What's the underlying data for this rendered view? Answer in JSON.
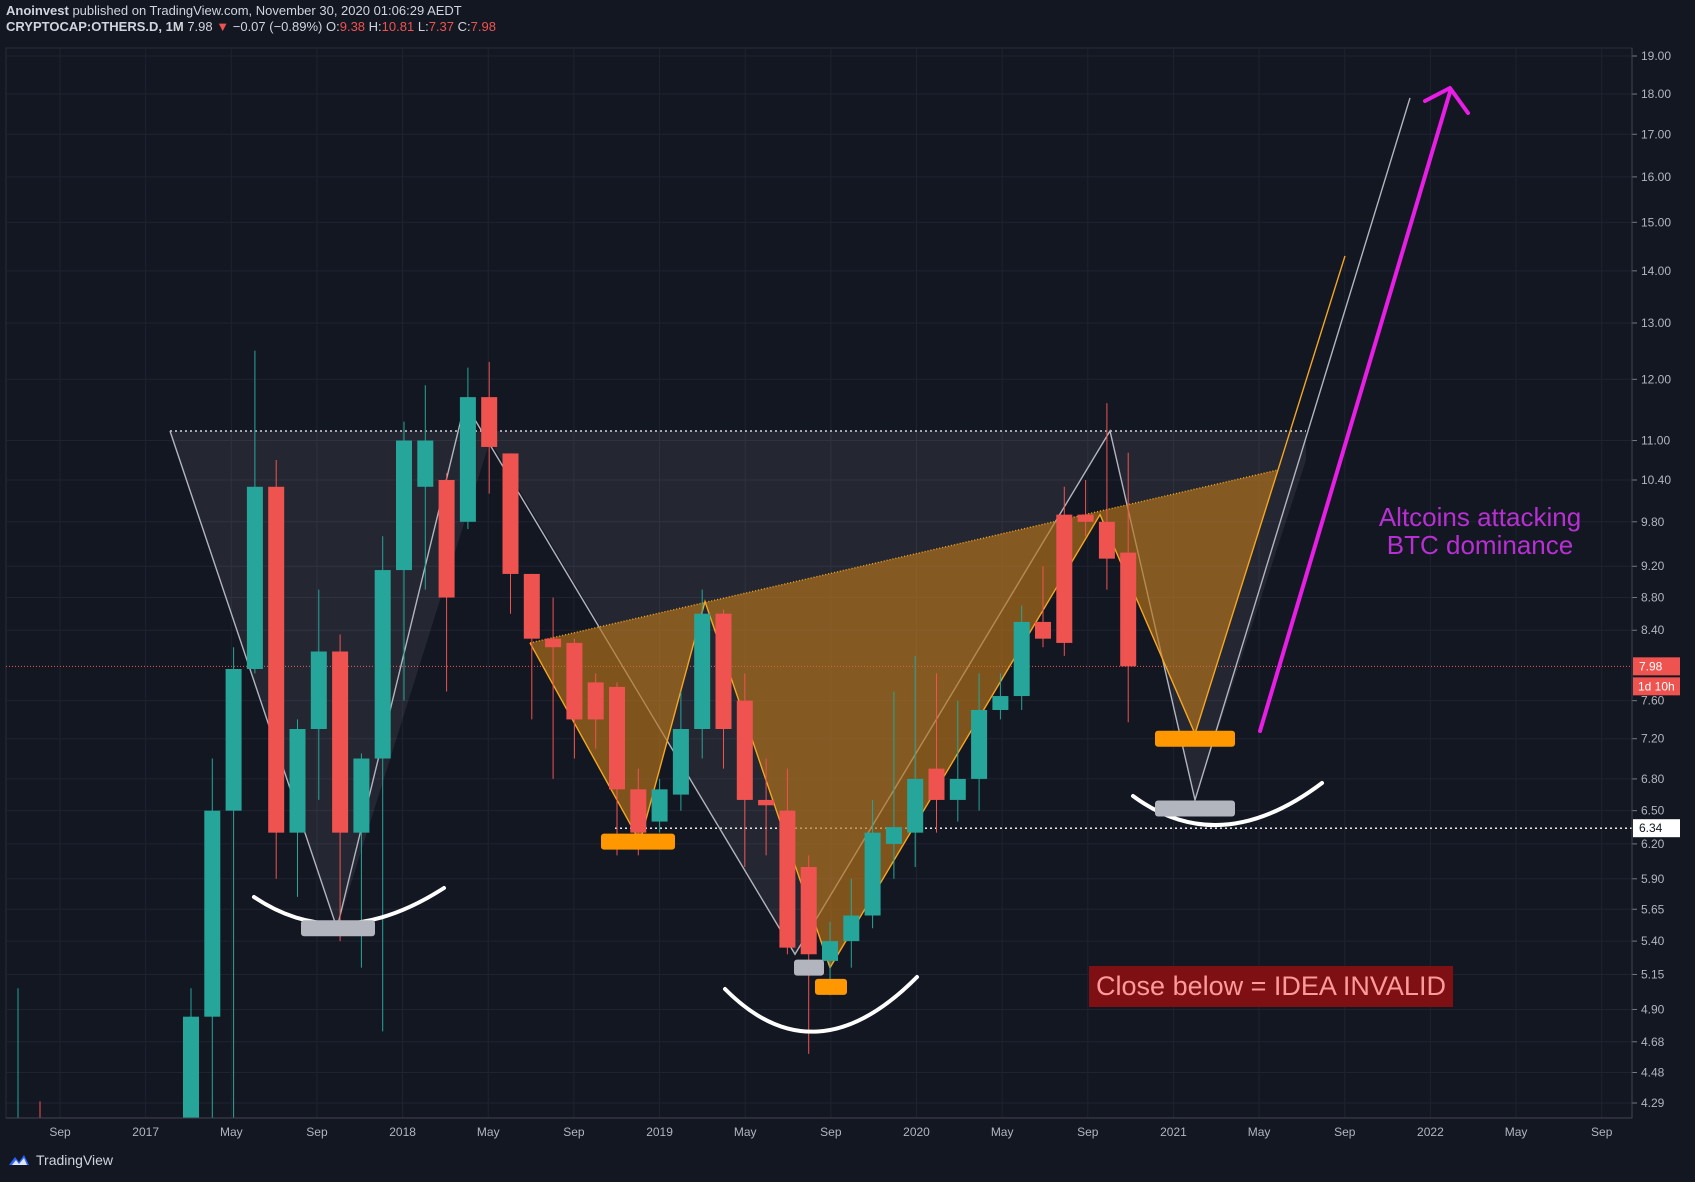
{
  "header": {
    "line1_user": "Anoinvest",
    "line1_rest": " published on TradingView.com, November 30, 2020 01:06:29 AEDT",
    "symbol": "CRYPTOCAP:OTHERS.D, 1M",
    "last": "7.98",
    "change_arrow": "▼",
    "change": "−0.07 (−0.89%)",
    "o_label": "O:",
    "o": "9.38",
    "h_label": "H:",
    "h": "10.81",
    "l_label": "L:",
    "l": "7.37",
    "c_label": "C:",
    "c": "7.98"
  },
  "footer": {
    "brand": "TradingView"
  },
  "annotations": {
    "purple_line1": "Altcoins attacking",
    "purple_line2": "BTC dominance",
    "red_box": "Close below = IDEA INVALID"
  },
  "colors": {
    "background": "#131722",
    "bull": "#26a69a",
    "bear": "#ef5350",
    "pattern_fill": "#b8741a",
    "pattern_line": "#f5a623",
    "magenta": "#e91ee6",
    "grid": "#1f2330"
  },
  "chart_data": {
    "type": "candlestick",
    "scale": "log",
    "ylim": [
      4.2,
      19.4
    ],
    "y_ticks": [
      "19.00",
      "18.00",
      "17.00",
      "16.00",
      "15.00",
      "14.00",
      "13.00",
      "12.00",
      "11.00",
      "10.40",
      "9.80",
      "9.20",
      "8.80",
      "8.40",
      "7.60",
      "7.20",
      "6.80",
      "6.50",
      "6.20",
      "5.90",
      "5.65",
      "5.40",
      "5.15",
      "4.90",
      "4.68",
      "4.48",
      "4.29"
    ],
    "x_ticks": [
      "Sep",
      "2017",
      "May",
      "Sep",
      "2018",
      "May",
      "Sep",
      "2019",
      "May",
      "Sep",
      "2020",
      "May",
      "Sep",
      "2021",
      "May",
      "Sep",
      "2022",
      "May",
      "Sep"
    ],
    "last_price_label": "7.98",
    "countdown_label": "1d 10h",
    "level_label": "6.34",
    "candles": [
      [
        4.85,
        4.2,
        5.05,
        4.2
      ],
      [
        6.5,
        4.85,
        7.0,
        4.2
      ],
      [
        7.95,
        6.5,
        8.2,
        4.2
      ],
      [
        10.3,
        7.95,
        12.5,
        7.9
      ],
      [
        6.3,
        10.3,
        10.7,
        5.9
      ],
      [
        7.3,
        6.3,
        7.4,
        5.75
      ],
      [
        8.15,
        7.3,
        8.9,
        6.6
      ],
      [
        6.3,
        8.15,
        8.35,
        5.4
      ],
      [
        7.0,
        6.3,
        7.05,
        5.2
      ],
      [
        9.15,
        7.0,
        9.6,
        4.75
      ],
      [
        11.0,
        9.15,
        11.3,
        7.6
      ],
      [
        11.0,
        10.3,
        11.9,
        8.9
      ],
      [
        8.8,
        10.4,
        10.5,
        7.7
      ],
      [
        11.7,
        9.8,
        12.2,
        9.7
      ],
      [
        10.9,
        11.7,
        12.3,
        10.2
      ],
      [
        9.1,
        10.8,
        10.8,
        8.6
      ],
      [
        8.3,
        9.1,
        9.1,
        7.4
      ],
      [
        8.2,
        8.3,
        8.8,
        6.8
      ],
      [
        7.4,
        8.25,
        8.3,
        7.0
      ],
      [
        7.4,
        7.8,
        7.9,
        7.1
      ],
      [
        6.7,
        7.75,
        7.8,
        6.1
      ],
      [
        6.3,
        6.7,
        6.9,
        6.1
      ],
      [
        6.7,
        6.4,
        6.8,
        6.3
      ],
      [
        7.3,
        6.65,
        7.7,
        6.5
      ],
      [
        8.6,
        7.3,
        8.9,
        7.0
      ],
      [
        7.3,
        8.6,
        8.65,
        6.9
      ],
      [
        6.6,
        7.6,
        7.9,
        6.0
      ],
      [
        6.55,
        6.6,
        7.0,
        6.1
      ],
      [
        5.35,
        6.5,
        6.9,
        5.3
      ],
      [
        5.3,
        6.0,
        6.1,
        4.6
      ],
      [
        5.4,
        5.25,
        5.55,
        5.0
      ],
      [
        5.6,
        5.4,
        5.9,
        5.2
      ],
      [
        6.3,
        5.6,
        6.6,
        5.5
      ],
      [
        6.35,
        6.2,
        7.7,
        5.9
      ],
      [
        6.8,
        6.3,
        8.1,
        6.0
      ],
      [
        6.6,
        6.9,
        7.9,
        6.3
      ],
      [
        6.8,
        6.6,
        7.6,
        6.4
      ],
      [
        7.5,
        6.8,
        7.9,
        6.5
      ],
      [
        7.65,
        7.5,
        7.9,
        7.4
      ],
      [
        8.5,
        7.65,
        8.7,
        7.5
      ],
      [
        8.3,
        8.5,
        9.2,
        8.2
      ],
      [
        8.25,
        9.9,
        10.3,
        8.1
      ],
      [
        9.8,
        9.9,
        10.4,
        9.6
      ],
      [
        9.3,
        9.8,
        11.6,
        8.9
      ],
      [
        7.98,
        9.38,
        10.81,
        7.37
      ]
    ]
  }
}
